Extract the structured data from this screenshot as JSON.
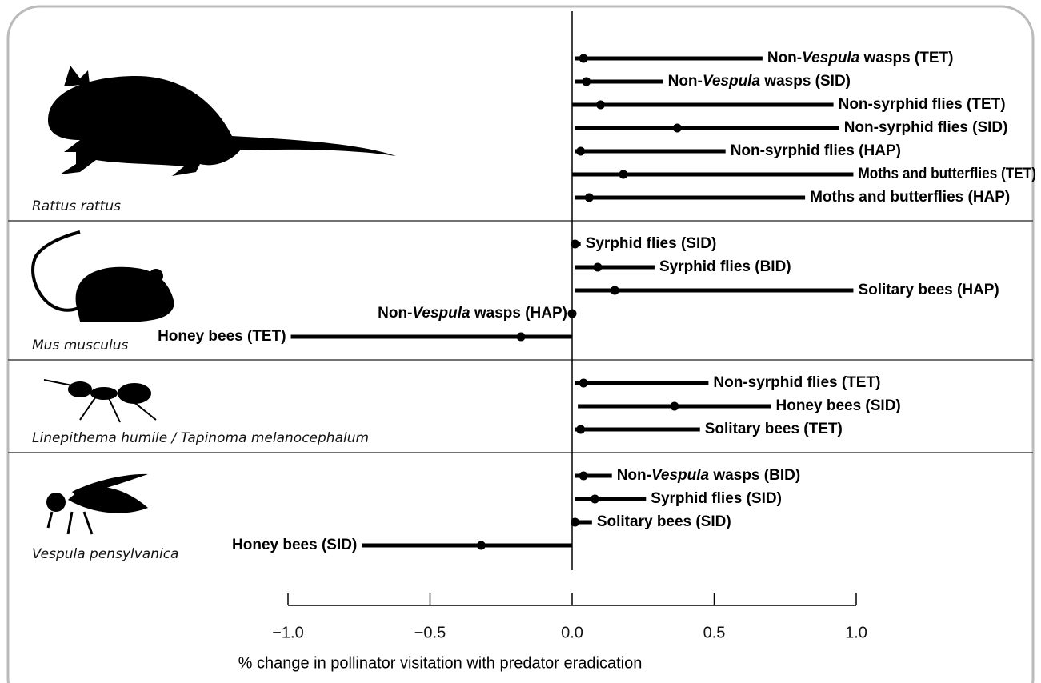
{
  "chart_data": {
    "type": "forest",
    "x_label": "% change in pollinator visitation with predator eradication",
    "xlim": [
      -1.0,
      1.0
    ],
    "xticks": [
      {
        "value": -1.0,
        "label": "−1.0"
      },
      {
        "value": -0.5,
        "label": "−0.5"
      },
      {
        "value": 0,
        "label": "0.0"
      },
      0.5,
      {
        "value": 1.0,
        "label": "1.0"
      }
    ],
    "color": "#000000",
    "groups": [
      {
        "name": "Rattus rattus",
        "rows": [
          {
            "label": "Non-Vespula wasps (TET)",
            "value": 0.04,
            "lo": 0.01,
            "hi": 0.67
          },
          {
            "label": "Non-Vespula wasps (SID)",
            "value": 0.05,
            "lo": 0.01,
            "hi": 0.32
          },
          {
            "label": "Non-syrphid flies (TET)",
            "value": 0.1,
            "lo": 0.0,
            "hi": 0.92
          },
          {
            "label": "Non-syrphid flies (SID)",
            "value": 0.37,
            "lo": 0.01,
            "hi": 0.94
          },
          {
            "label": "Non-syrphid flies (HAP)",
            "value": 0.03,
            "lo": 0.01,
            "hi": 0.54
          },
          {
            "label": "Moths and butterflies (TET)",
            "value": 0.18,
            "lo": 0.0,
            "hi": 0.99
          },
          {
            "label": "Moths and butterflies (HAP)",
            "value": 0.06,
            "lo": 0.01,
            "hi": 0.82
          }
        ]
      },
      {
        "name": "Mus musculus",
        "rows": [
          {
            "label": "Syrphid flies (SID)",
            "value": 0.01,
            "lo": 0.0,
            "hi": 0.03
          },
          {
            "label": "Syrphid flies (BID)",
            "value": 0.09,
            "lo": 0.01,
            "hi": 0.29
          },
          {
            "label": "Solitary bees (HAP)",
            "value": 0.15,
            "lo": 0.01,
            "hi": 0.99
          },
          {
            "label": "Non-Vespula wasps (HAP)",
            "value": 0.0,
            "lo": 0.0,
            "hi": 0.0
          },
          {
            "label": "Honey bees (TET)",
            "value": -0.18,
            "lo": -0.99,
            "hi": 0.0
          }
        ]
      },
      {
        "name": "Linepithema humile / Tapinoma melanocephalum",
        "rows": [
          {
            "label": "Non-syrphid flies (TET)",
            "value": 0.04,
            "lo": 0.01,
            "hi": 0.48
          },
          {
            "label": "Honey bees (SID)",
            "value": 0.36,
            "lo": 0.02,
            "hi": 0.7
          },
          {
            "label": "Solitary bees (TET)",
            "value": 0.03,
            "lo": 0.01,
            "hi": 0.45
          }
        ]
      },
      {
        "name": "Vespula pensylvanica",
        "rows": [
          {
            "label": "Non-Vespula wasps (BID)",
            "value": 0.04,
            "lo": 0.01,
            "hi": 0.14
          },
          {
            "label": "Syrphid flies (SID)",
            "value": 0.08,
            "lo": 0.01,
            "hi": 0.26
          },
          {
            "label": "Solitary bees (SID)",
            "value": 0.01,
            "lo": 0.0,
            "hi": 0.07
          },
          {
            "label": "Honey bees (SID)",
            "value": -0.32,
            "lo": -0.74,
            "hi": 0.0
          }
        ]
      }
    ]
  }
}
